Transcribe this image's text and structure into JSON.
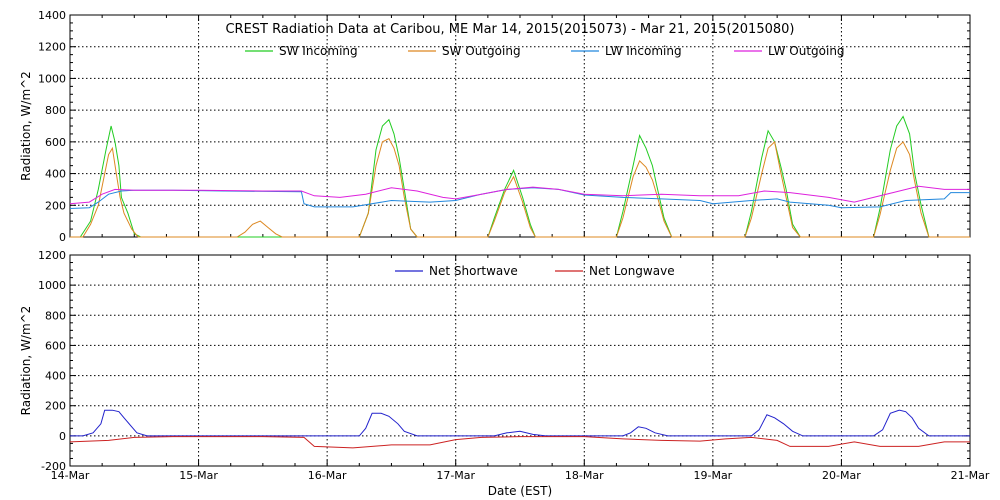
{
  "chart_data": [
    {
      "type": "line",
      "title": "CREST Radiation Data at Caribou, ME   Mar 14, 2015(2015073) - Mar 21, 2015(2015080)",
      "ylabel": "Radiation, W/m^2",
      "ylim": [
        0,
        1400
      ],
      "yticks": [
        "0",
        "200",
        "400",
        "600",
        "800",
        "1000",
        "1200",
        "1400"
      ],
      "xlim": [
        "2015-03-14",
        "2015-03-21"
      ],
      "grid": true,
      "legend_position": "top",
      "series": [
        {
          "name": "SW Incoming",
          "color": "#22cc22",
          "points": [
            [
              0,
              0
            ],
            [
              0.08,
              0
            ],
            [
              0.16,
              100
            ],
            [
              0.22,
              300
            ],
            [
              0.28,
              550
            ],
            [
              0.32,
              700
            ],
            [
              0.35,
              600
            ],
            [
              0.38,
              450
            ],
            [
              0.4,
              250
            ],
            [
              0.45,
              150
            ],
            [
              0.5,
              20
            ],
            [
              0.55,
              0
            ],
            [
              1.3,
              0
            ],
            [
              1.35,
              0
            ],
            [
              1.55,
              0
            ],
            [
              1.85,
              0
            ],
            [
              2.25,
              0
            ],
            [
              2.32,
              150
            ],
            [
              2.38,
              550
            ],
            [
              2.43,
              700
            ],
            [
              2.48,
              740
            ],
            [
              2.52,
              650
            ],
            [
              2.56,
              500
            ],
            [
              2.6,
              300
            ],
            [
              2.65,
              50
            ],
            [
              2.7,
              0
            ],
            [
              3.25,
              0
            ],
            [
              3.3,
              120
            ],
            [
              3.38,
              300
            ],
            [
              3.45,
              420
            ],
            [
              3.52,
              250
            ],
            [
              3.58,
              80
            ],
            [
              3.62,
              0
            ],
            [
              4.25,
              0
            ],
            [
              4.3,
              160
            ],
            [
              4.38,
              450
            ],
            [
              4.43,
              640
            ],
            [
              4.48,
              560
            ],
            [
              4.53,
              450
            ],
            [
              4.57,
              300
            ],
            [
              4.62,
              120
            ],
            [
              4.68,
              0
            ],
            [
              5.25,
              0
            ],
            [
              5.3,
              160
            ],
            [
              5.38,
              500
            ],
            [
              5.43,
              670
            ],
            [
              5.48,
              600
            ],
            [
              5.53,
              440
            ],
            [
              5.57,
              300
            ],
            [
              5.62,
              80
            ],
            [
              5.68,
              0
            ],
            [
              6.25,
              0
            ],
            [
              6.3,
              180
            ],
            [
              6.38,
              550
            ],
            [
              6.43,
              700
            ],
            [
              6.48,
              760
            ],
            [
              6.53,
              650
            ],
            [
              6.57,
              400
            ],
            [
              6.62,
              200
            ],
            [
              6.68,
              0
            ],
            [
              7,
              0
            ]
          ]
        },
        {
          "name": "SW Outgoing",
          "color": "#dd8822",
          "points": [
            [
              0,
              0
            ],
            [
              0.1,
              0
            ],
            [
              0.16,
              80
            ],
            [
              0.22,
              200
            ],
            [
              0.27,
              400
            ],
            [
              0.3,
              520
            ],
            [
              0.33,
              560
            ],
            [
              0.36,
              400
            ],
            [
              0.39,
              250
            ],
            [
              0.42,
              150
            ],
            [
              0.48,
              50
            ],
            [
              0.53,
              0
            ],
            [
              1.3,
              0
            ],
            [
              1.36,
              30
            ],
            [
              1.42,
              80
            ],
            [
              1.48,
              100
            ],
            [
              1.54,
              60
            ],
            [
              1.6,
              20
            ],
            [
              1.65,
              0
            ],
            [
              2.25,
              0
            ],
            [
              2.32,
              150
            ],
            [
              2.38,
              450
            ],
            [
              2.43,
              600
            ],
            [
              2.48,
              620
            ],
            [
              2.52,
              560
            ],
            [
              2.56,
              450
            ],
            [
              2.6,
              250
            ],
            [
              2.65,
              50
            ],
            [
              2.7,
              0
            ],
            [
              3.25,
              0
            ],
            [
              3.3,
              100
            ],
            [
              3.38,
              280
            ],
            [
              3.45,
              380
            ],
            [
              3.52,
              220
            ],
            [
              3.58,
              60
            ],
            [
              3.62,
              0
            ],
            [
              4.25,
              0
            ],
            [
              4.3,
              120
            ],
            [
              4.38,
              380
            ],
            [
              4.43,
              480
            ],
            [
              4.48,
              440
            ],
            [
              4.53,
              360
            ],
            [
              4.57,
              250
            ],
            [
              4.62,
              100
            ],
            [
              4.68,
              0
            ],
            [
              5.25,
              0
            ],
            [
              5.3,
              120
            ],
            [
              5.38,
              400
            ],
            [
              5.43,
              560
            ],
            [
              5.48,
              600
            ],
            [
              5.53,
              400
            ],
            [
              5.57,
              250
            ],
            [
              5.62,
              60
            ],
            [
              5.68,
              0
            ],
            [
              6.25,
              0
            ],
            [
              6.3,
              140
            ],
            [
              6.38,
              420
            ],
            [
              6.43,
              560
            ],
            [
              6.48,
              600
            ],
            [
              6.53,
              520
            ],
            [
              6.57,
              350
            ],
            [
              6.62,
              150
            ],
            [
              6.68,
              0
            ],
            [
              7,
              0
            ]
          ]
        },
        {
          "name": "LW Incoming",
          "color": "#2288dd",
          "points": [
            [
              0,
              180
            ],
            [
              0.15,
              185
            ],
            [
              0.22,
              220
            ],
            [
              0.3,
              270
            ],
            [
              0.4,
              290
            ],
            [
              0.5,
              295
            ],
            [
              0.8,
              295
            ],
            [
              1.2,
              290
            ],
            [
              1.8,
              285
            ],
            [
              1.82,
              210
            ],
            [
              1.9,
              190
            ],
            [
              2.2,
              190
            ],
            [
              2.5,
              230
            ],
            [
              2.8,
              220
            ],
            [
              3.0,
              230
            ],
            [
              3.2,
              270
            ],
            [
              3.4,
              300
            ],
            [
              3.6,
              310
            ],
            [
              3.8,
              300
            ],
            [
              4.0,
              265
            ],
            [
              4.3,
              250
            ],
            [
              4.6,
              240
            ],
            [
              4.9,
              230
            ],
            [
              5.0,
              210
            ],
            [
              5.3,
              230
            ],
            [
              5.5,
              240
            ],
            [
              5.6,
              220
            ],
            [
              5.9,
              200
            ],
            [
              6.0,
              185
            ],
            [
              6.3,
              190
            ],
            [
              6.5,
              230
            ],
            [
              6.8,
              240
            ],
            [
              6.85,
              280
            ],
            [
              7,
              280
            ]
          ]
        },
        {
          "name": "LW Outgoing",
          "color": "#dd22dd",
          "points": [
            [
              0,
              210
            ],
            [
              0.15,
              220
            ],
            [
              0.25,
              270
            ],
            [
              0.35,
              300
            ],
            [
              0.5,
              295
            ],
            [
              1.0,
              295
            ],
            [
              1.5,
              290
            ],
            [
              1.8,
              290
            ],
            [
              1.9,
              260
            ],
            [
              2.1,
              250
            ],
            [
              2.3,
              270
            ],
            [
              2.5,
              310
            ],
            [
              2.7,
              290
            ],
            [
              2.9,
              250
            ],
            [
              3.0,
              240
            ],
            [
              3.2,
              270
            ],
            [
              3.4,
              300
            ],
            [
              3.6,
              315
            ],
            [
              3.8,
              300
            ],
            [
              4.0,
              270
            ],
            [
              4.3,
              260
            ],
            [
              4.6,
              270
            ],
            [
              4.9,
              260
            ],
            [
              5.2,
              260
            ],
            [
              5.4,
              290
            ],
            [
              5.6,
              280
            ],
            [
              5.9,
              250
            ],
            [
              6.1,
              220
            ],
            [
              6.4,
              280
            ],
            [
              6.6,
              320
            ],
            [
              6.8,
              300
            ],
            [
              7,
              300
            ]
          ]
        }
      ]
    },
    {
      "type": "line",
      "xlabel": "Date (EST)",
      "ylabel": "Radiation, W/m^2",
      "ylim": [
        -200,
        1200
      ],
      "yticks": [
        "-200",
        "0",
        "200",
        "400",
        "600",
        "800",
        "1000",
        "1200"
      ],
      "xlim": [
        "2015-03-14",
        "2015-03-21"
      ],
      "xticks": [
        "14-Mar",
        "15-Mar",
        "16-Mar",
        "17-Mar",
        "18-Mar",
        "19-Mar",
        "20-Mar",
        "21-Mar"
      ],
      "grid": true,
      "legend_position": "top",
      "series": [
        {
          "name": "Net Shortwave",
          "color": "#2222cc",
          "points": [
            [
              0,
              0
            ],
            [
              0.1,
              0
            ],
            [
              0.18,
              20
            ],
            [
              0.24,
              80
            ],
            [
              0.27,
              170
            ],
            [
              0.33,
              170
            ],
            [
              0.38,
              160
            ],
            [
              0.42,
              120
            ],
            [
              0.48,
              60
            ],
            [
              0.52,
              20
            ],
            [
              0.6,
              0
            ],
            [
              2.25,
              0
            ],
            [
              2.3,
              50
            ],
            [
              2.35,
              150
            ],
            [
              2.42,
              150
            ],
            [
              2.48,
              130
            ],
            [
              2.55,
              80
            ],
            [
              2.6,
              30
            ],
            [
              2.7,
              0
            ],
            [
              3.3,
              0
            ],
            [
              3.4,
              20
            ],
            [
              3.5,
              30
            ],
            [
              3.6,
              10
            ],
            [
              3.7,
              0
            ],
            [
              4.3,
              0
            ],
            [
              4.36,
              20
            ],
            [
              4.42,
              60
            ],
            [
              4.48,
              50
            ],
            [
              4.55,
              20
            ],
            [
              4.65,
              0
            ],
            [
              5.3,
              0
            ],
            [
              5.36,
              40
            ],
            [
              5.42,
              140
            ],
            [
              5.48,
              120
            ],
            [
              5.55,
              80
            ],
            [
              5.62,
              30
            ],
            [
              5.7,
              0
            ],
            [
              6.25,
              0
            ],
            [
              6.32,
              40
            ],
            [
              6.38,
              150
            ],
            [
              6.45,
              170
            ],
            [
              6.5,
              160
            ],
            [
              6.55,
              120
            ],
            [
              6.6,
              50
            ],
            [
              6.68,
              0
            ],
            [
              7,
              0
            ]
          ]
        },
        {
          "name": "Net Longwave",
          "color": "#cc2222",
          "points": [
            [
              0,
              -40
            ],
            [
              0.15,
              -35
            ],
            [
              0.3,
              -30
            ],
            [
              0.5,
              -10
            ],
            [
              0.8,
              -5
            ],
            [
              1.5,
              -5
            ],
            [
              1.82,
              -10
            ],
            [
              1.9,
              -70
            ],
            [
              2.2,
              -80
            ],
            [
              2.5,
              -60
            ],
            [
              2.8,
              -60
            ],
            [
              3.0,
              -25
            ],
            [
              3.2,
              -10
            ],
            [
              3.5,
              -5
            ],
            [
              3.8,
              -5
            ],
            [
              4.0,
              -5
            ],
            [
              4.3,
              -20
            ],
            [
              4.6,
              -30
            ],
            [
              4.9,
              -35
            ],
            [
              5.1,
              -20
            ],
            [
              5.3,
              -10
            ],
            [
              5.5,
              -30
            ],
            [
              5.6,
              -70
            ],
            [
              5.9,
              -70
            ],
            [
              6.1,
              -40
            ],
            [
              6.3,
              -70
            ],
            [
              6.6,
              -70
            ],
            [
              6.8,
              -40
            ],
            [
              7,
              -40
            ]
          ]
        }
      ]
    }
  ]
}
